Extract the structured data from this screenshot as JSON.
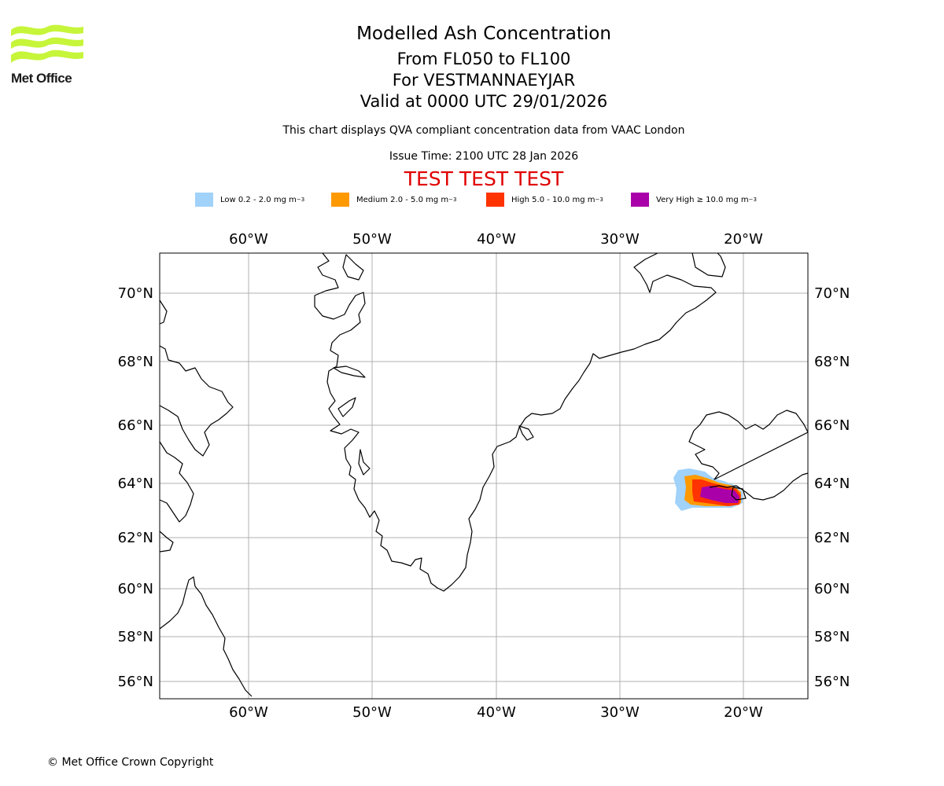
{
  "logo": {
    "text": "Met Office"
  },
  "header": {
    "title": "Modelled Ash Concentration",
    "flight_levels": "From FL050 to FL100",
    "volcano": "For VESTMANNAEYJAR",
    "valid_time": "Valid at 0000 UTC 29/01/2026",
    "disclaimer": "This chart displays QVA compliant concentration data from VAAC London",
    "issue_time": "Issue Time: 2100 UTC 28 Jan 2026",
    "test_banner": "TEST TEST TEST"
  },
  "legend": [
    {
      "label": "Low 0.2 - 2.0 mg m",
      "unit_exp": "−3",
      "color": "#a0d2fa"
    },
    {
      "label": "Medium 2.0 - 5.0 mg m",
      "unit_exp": "−3",
      "color": "#ff9900"
    },
    {
      "label": "High 5.0 - 10.0 mg m",
      "unit_exp": "−3",
      "color": "#ff3300"
    },
    {
      "label": "Very High  ≥  10.0 mg m",
      "unit_exp": "−3",
      "color": "#aa00aa"
    }
  ],
  "map": {
    "longitude_labels": [
      "60°W",
      "50°W",
      "40°W",
      "30°W",
      "20°W"
    ],
    "latitude_labels": [
      "70°N",
      "68°N",
      "66°N",
      "64°N",
      "62°N",
      "60°N",
      "58°N",
      "56°N"
    ]
  },
  "footer": {
    "copyright": "© Met Office Crown Copyright"
  },
  "colors": {
    "grid": "#b0b0b0",
    "coast": "#000000",
    "title_test": "#e00000",
    "logo": "#c6f53a"
  }
}
